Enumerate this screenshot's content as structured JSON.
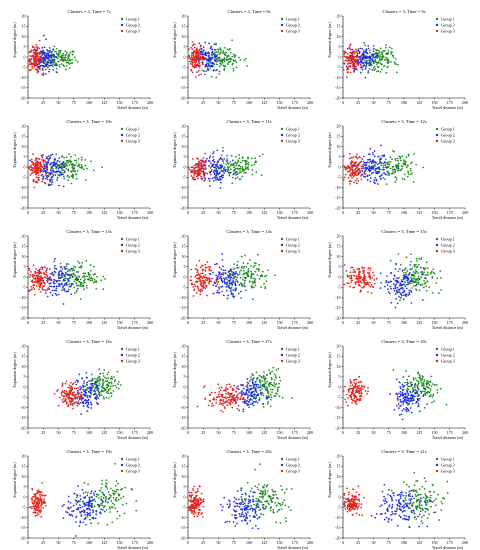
{
  "figure": {
    "x_label": "Travel distance (m)",
    "y_label": "Expansion degree (m)",
    "x_ticks": [
      0,
      25,
      50,
      75,
      100,
      125,
      150,
      175,
      200
    ],
    "y_ticks": [
      20,
      15,
      10,
      5,
      0,
      -5,
      -10,
      -15,
      -20
    ],
    "xlim": [
      0,
      200
    ],
    "ylim": [
      -20,
      20
    ],
    "legend_position": "top-right",
    "group_colors": {
      "Group 1": "#1a8a1a",
      "Group 2": "#1f2be0",
      "Group 3": "#e0241c"
    },
    "legend_labels": [
      "Group 1",
      "Group 2",
      "Group 3"
    ],
    "panel_titles": [
      "Clusters = 3, Time = 7s",
      "Clusters = 3, Time = 8s",
      "Clusters = 3, Time = 9s",
      "Clusters = 3, Time = 10s",
      "Clusters = 3, Time = 11s",
      "Clusters = 3, Time = 12s",
      "Clusters = 3, Time = 13s",
      "Clusters = 3, Time = 14s",
      "Clusters = 3, Time = 15s",
      "Clusters = 3, Time = 16s",
      "Clusters = 3, Time = 17s",
      "Clusters = 3, Time = 18s",
      "Clusters = 3, Time = 19s",
      "Clusters = 3, Time = 20s",
      "Clusters = 3, Time = 21s"
    ]
  },
  "chart_data": [
    {
      "type": "scatter",
      "time": "7s",
      "series": [
        {
          "name": "Group 1",
          "x_center": 52,
          "x_spread": 14,
          "y_center": -1,
          "y_spread": 2.5
        },
        {
          "name": "Group 2",
          "x_center": 28,
          "x_spread": 9,
          "y_center": -1,
          "y_spread": 3
        },
        {
          "name": "Group 3",
          "x_center": 12,
          "x_spread": 6,
          "y_center": -1,
          "y_spread": 3
        }
      ]
    },
    {
      "type": "scatter",
      "time": "8s",
      "series": [
        {
          "name": "Group 1",
          "x_center": 55,
          "x_spread": 15,
          "y_center": -1,
          "y_spread": 3
        },
        {
          "name": "Group 2",
          "x_center": 32,
          "x_spread": 10,
          "y_center": -1,
          "y_spread": 3
        },
        {
          "name": "Group 3",
          "x_center": 13,
          "x_spread": 6,
          "y_center": -1,
          "y_spread": 3
        }
      ]
    },
    {
      "type": "scatter",
      "time": "9s",
      "series": [
        {
          "name": "Group 1",
          "x_center": 58,
          "x_spread": 15,
          "y_center": -1,
          "y_spread": 3
        },
        {
          "name": "Group 2",
          "x_center": 34,
          "x_spread": 10,
          "y_center": -1,
          "y_spread": 3
        },
        {
          "name": "Group 3",
          "x_center": 14,
          "x_spread": 6,
          "y_center": -1,
          "y_spread": 3
        }
      ]
    },
    {
      "type": "scatter",
      "time": "10s",
      "series": [
        {
          "name": "Group 1",
          "x_center": 68,
          "x_spread": 16,
          "y_center": 0,
          "y_spread": 3
        },
        {
          "name": "Group 2",
          "x_center": 38,
          "x_spread": 11,
          "y_center": -1,
          "y_spread": 3.5
        },
        {
          "name": "Group 3",
          "x_center": 14,
          "x_spread": 7,
          "y_center": -1,
          "y_spread": 3
        }
      ]
    },
    {
      "type": "scatter",
      "time": "11s",
      "series": [
        {
          "name": "Group 1",
          "x_center": 80,
          "x_spread": 17,
          "y_center": 0,
          "y_spread": 3
        },
        {
          "name": "Group 2",
          "x_center": 45,
          "x_spread": 12,
          "y_center": -1,
          "y_spread": 3.5
        },
        {
          "name": "Group 3",
          "x_center": 17,
          "x_spread": 8,
          "y_center": -1,
          "y_spread": 3
        }
      ]
    },
    {
      "type": "scatter",
      "time": "12s",
      "series": [
        {
          "name": "Group 1",
          "x_center": 85,
          "x_spread": 17,
          "y_center": 0,
          "y_spread": 3
        },
        {
          "name": "Group 2",
          "x_center": 48,
          "x_spread": 12,
          "y_center": -1,
          "y_spread": 3.5
        },
        {
          "name": "Group 3",
          "x_center": 18,
          "x_spread": 8,
          "y_center": -1,
          "y_spread": 3
        }
      ]
    },
    {
      "type": "scatter",
      "time": "13s",
      "series": [
        {
          "name": "Group 1",
          "x_center": 85,
          "x_spread": 16,
          "y_center": 0,
          "y_spread": 3.5
        },
        {
          "name": "Group 2",
          "x_center": 50,
          "x_spread": 13,
          "y_center": -1,
          "y_spread": 4
        },
        {
          "name": "Group 3",
          "x_center": 18,
          "x_spread": 9,
          "y_center": -1,
          "y_spread": 3.5
        }
      ]
    },
    {
      "type": "scatter",
      "time": "14s",
      "series": [
        {
          "name": "Group 1",
          "x_center": 100,
          "x_spread": 18,
          "y_center": 0,
          "y_spread": 4
        },
        {
          "name": "Group 2",
          "x_center": 62,
          "x_spread": 14,
          "y_center": -2,
          "y_spread": 4
        },
        {
          "name": "Group 3",
          "x_center": 24,
          "x_spread": 10,
          "y_center": -1,
          "y_spread": 3.5
        }
      ]
    },
    {
      "type": "scatter",
      "time": "15s",
      "series": [
        {
          "name": "Group 1",
          "x_center": 122,
          "x_spread": 15,
          "y_center": 0,
          "y_spread": 4
        },
        {
          "name": "Group 2",
          "x_center": 95,
          "x_spread": 13,
          "y_center": -4,
          "y_spread": 4
        },
        {
          "name": "Group 3",
          "x_center": 28,
          "x_spread": 12,
          "y_center": -1,
          "y_spread": 3
        }
      ]
    },
    {
      "type": "scatter",
      "time": "16s",
      "series": [
        {
          "name": "Group 1",
          "x_center": 120,
          "x_spread": 13,
          "y_center": 1,
          "y_spread": 3
        },
        {
          "name": "Group 2",
          "x_center": 97,
          "x_spread": 11,
          "y_center": -3,
          "y_spread": 4
        },
        {
          "name": "Group 3",
          "x_center": 70,
          "x_spread": 9,
          "y_center": -4,
          "y_spread": 3
        }
      ]
    },
    {
      "type": "scatter",
      "time": "17s",
      "series": [
        {
          "name": "Group 1",
          "x_center": 128,
          "x_spread": 14,
          "y_center": 0,
          "y_spread": 4
        },
        {
          "name": "Group 2",
          "x_center": 100,
          "x_spread": 11,
          "y_center": -4,
          "y_spread": 4
        },
        {
          "name": "Group 3",
          "x_center": 62,
          "x_spread": 14,
          "y_center": -5,
          "y_spread": 3
        }
      ]
    },
    {
      "type": "scatter",
      "time": "18s",
      "series": [
        {
          "name": "Group 1",
          "x_center": 130,
          "x_spread": 14,
          "y_center": 0,
          "y_spread": 4
        },
        {
          "name": "Group 2",
          "x_center": 105,
          "x_spread": 12,
          "y_center": -5,
          "y_spread": 4
        },
        {
          "name": "Group 3",
          "x_center": 20,
          "x_spread": 8,
          "y_center": -2,
          "y_spread": 3
        }
      ]
    },
    {
      "type": "scatter",
      "time": "19s",
      "series": [
        {
          "name": "Group 1",
          "x_center": 128,
          "x_spread": 17,
          "y_center": -1,
          "y_spread": 4.5
        },
        {
          "name": "Group 2",
          "x_center": 95,
          "x_spread": 15,
          "y_center": -5,
          "y_spread": 4.5
        },
        {
          "name": "Group 3",
          "x_center": 15,
          "x_spread": 6,
          "y_center": -3,
          "y_spread": 3
        }
      ]
    },
    {
      "type": "scatter",
      "time": "20s",
      "series": [
        {
          "name": "Group 1",
          "x_center": 128,
          "x_spread": 18,
          "y_center": -1,
          "y_spread": 4.5
        },
        {
          "name": "Group 2",
          "x_center": 92,
          "x_spread": 16,
          "y_center": -5,
          "y_spread": 4.5
        },
        {
          "name": "Group 3",
          "x_center": 12,
          "x_spread": 6,
          "y_center": -3,
          "y_spread": 3
        }
      ]
    },
    {
      "type": "scatter",
      "time": "21s",
      "series": [
        {
          "name": "Group 1",
          "x_center": 130,
          "x_spread": 18,
          "y_center": -1,
          "y_spread": 4.5
        },
        {
          "name": "Group 2",
          "x_center": 92,
          "x_spread": 17,
          "y_center": -5,
          "y_spread": 4.5
        },
        {
          "name": "Group 3",
          "x_center": 15,
          "x_spread": 7,
          "y_center": -3,
          "y_spread": 3
        }
      ]
    }
  ]
}
